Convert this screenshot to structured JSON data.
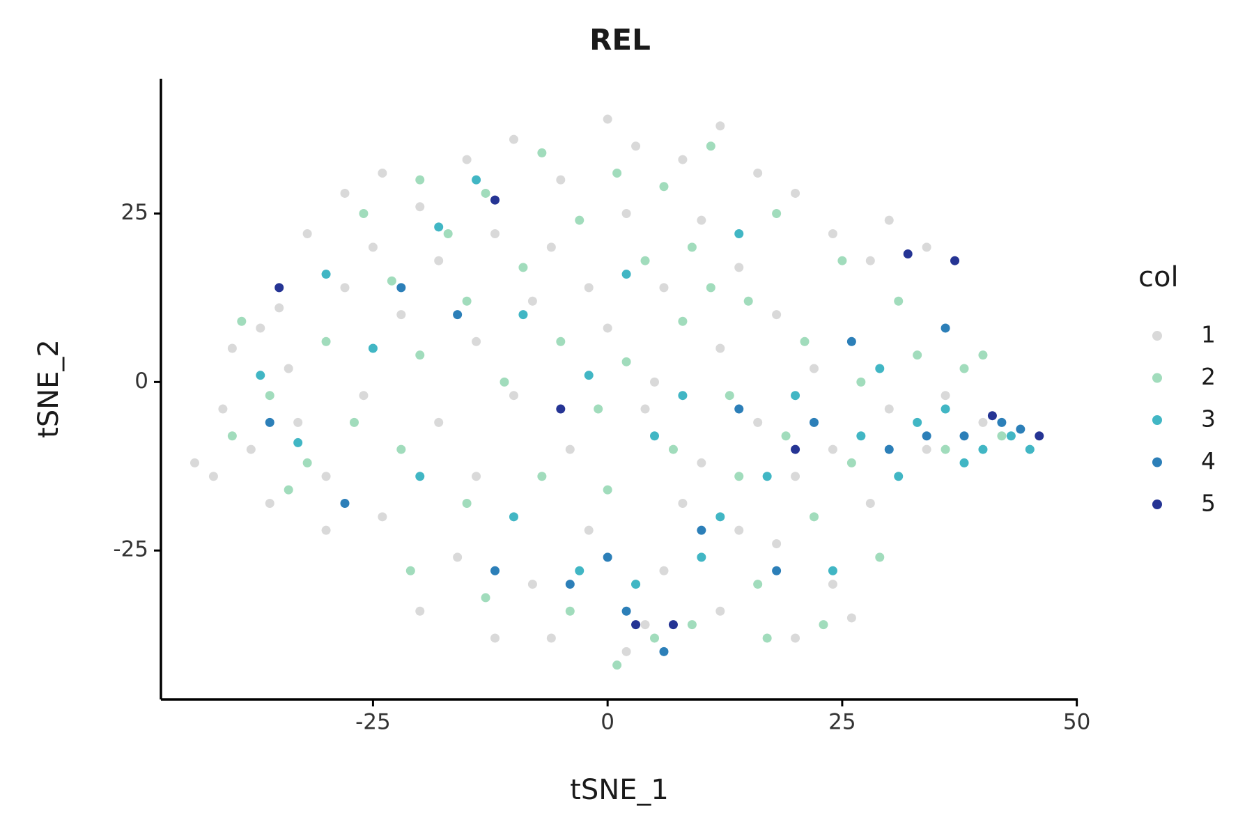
{
  "chart_data": {
    "type": "scatter",
    "title": "REL",
    "x_label": "tSNE_1",
    "y_label": "tSNE_2",
    "legend_title": "col",
    "legend_position": "right",
    "xlim": [
      -47.6,
      50.1
    ],
    "ylim": [
      -47.1,
      45
    ],
    "xticks": [
      -25,
      0,
      25,
      50
    ],
    "yticks": [
      -25,
      0,
      25
    ],
    "series": [
      {
        "name": "1",
        "color": "#d9d9d9",
        "x": [
          -40,
          -37,
          -34,
          -42,
          -38,
          -33,
          -30,
          -36,
          -41,
          -35,
          -28,
          -24,
          -20,
          -15,
          -10,
          -5,
          0,
          3,
          8,
          12,
          16,
          20,
          24,
          28,
          -25,
          -18,
          -12,
          -6,
          2,
          10,
          14,
          -22,
          -14,
          -8,
          0,
          6,
          12,
          18,
          22,
          -26,
          -18,
          -10,
          -4,
          4,
          10,
          16,
          24,
          30,
          36,
          40,
          -24,
          -16,
          -8,
          -2,
          6,
          12,
          18,
          24,
          28,
          -20,
          -12,
          2,
          4,
          20,
          26,
          34,
          37,
          -30,
          -44,
          -6,
          8,
          14,
          -28,
          30,
          -2,
          5,
          -14,
          20,
          -32,
          34
        ],
        "values": [
          5,
          8,
          2,
          -14,
          -10,
          -6,
          -14,
          -18,
          -4,
          11,
          28,
          31,
          26,
          33,
          36,
          30,
          39,
          35,
          33,
          38,
          31,
          28,
          22,
          18,
          20,
          18,
          22,
          20,
          25,
          24,
          17,
          10,
          6,
          12,
          8,
          14,
          5,
          10,
          2,
          -2,
          -6,
          -2,
          -10,
          -4,
          -12,
          -6,
          -10,
          -4,
          -2,
          -6,
          -20,
          -26,
          -30,
          -22,
          -28,
          -34,
          -24,
          -30,
          -18,
          -34,
          -38,
          -40,
          -36,
          -38,
          -35,
          20,
          18,
          -22,
          -12,
          -38,
          -18,
          -22,
          14,
          24,
          14,
          0,
          -14,
          -14,
          22,
          -10
        ]
      },
      {
        "name": "2",
        "color": "#a1dcbc",
        "x": [
          -39,
          -36,
          -40,
          -32,
          -26,
          -20,
          -13,
          -7,
          1,
          6,
          11,
          18,
          25,
          -23,
          -15,
          -9,
          -3,
          4,
          9,
          15,
          21,
          -20,
          -11,
          -5,
          2,
          8,
          13,
          19,
          27,
          33,
          38,
          42,
          -22,
          -15,
          -7,
          0,
          7,
          14,
          22,
          29,
          -21,
          -13,
          -4,
          3,
          9,
          16,
          23,
          -34,
          -30,
          36,
          1,
          5,
          -27,
          11,
          -1,
          17,
          26,
          -17,
          31,
          40
        ],
        "values": [
          9,
          -2,
          -8,
          -12,
          25,
          30,
          28,
          34,
          31,
          29,
          35,
          25,
          18,
          15,
          12,
          17,
          24,
          18,
          20,
          12,
          6,
          4,
          0,
          6,
          3,
          9,
          -2,
          -8,
          0,
          4,
          2,
          -8,
          -10,
          -18,
          -14,
          -16,
          -10,
          -14,
          -20,
          -26,
          -28,
          -32,
          -34,
          -30,
          -36,
          -30,
          -36,
          -16,
          6,
          -10,
          -42,
          -38,
          -6,
          14,
          -4,
          -38,
          -12,
          22,
          12,
          4
        ]
      },
      {
        "name": "3",
        "color": "#41b6c4",
        "x": [
          -37,
          -33,
          -25,
          -18,
          -9,
          -2,
          5,
          12,
          20,
          27,
          33,
          38,
          43,
          45,
          40,
          -10,
          -3,
          3,
          10,
          17,
          24,
          -14,
          2,
          14,
          31,
          36,
          -20,
          8,
          29,
          -30
        ],
        "values": [
          1,
          -9,
          5,
          23,
          10,
          1,
          -8,
          -20,
          -2,
          -8,
          -6,
          -12,
          -8,
          -10,
          -10,
          -20,
          -28,
          -30,
          -26,
          -14,
          -28,
          30,
          16,
          22,
          -14,
          -4,
          -14,
          -2,
          2,
          16
        ]
      },
      {
        "name": "4",
        "color": "#2c7fb8",
        "x": [
          -36,
          -22,
          -12,
          -4,
          2,
          6,
          10,
          22,
          30,
          34,
          38,
          42,
          44,
          36,
          -16,
          18,
          26,
          0,
          -28,
          14
        ],
        "values": [
          -6,
          14,
          -28,
          -30,
          -34,
          -40,
          -22,
          -6,
          -10,
          -8,
          -8,
          -6,
          -7,
          8,
          10,
          -28,
          6,
          -26,
          -18,
          -4
        ]
      },
      {
        "name": "5",
        "color": "#253494",
        "x": [
          -35,
          -5,
          3,
          7,
          32,
          37,
          46,
          41,
          -12,
          20
        ],
        "values": [
          14,
          -4,
          -36,
          -36,
          19,
          18,
          -8,
          -5,
          27,
          -10
        ]
      }
    ]
  }
}
